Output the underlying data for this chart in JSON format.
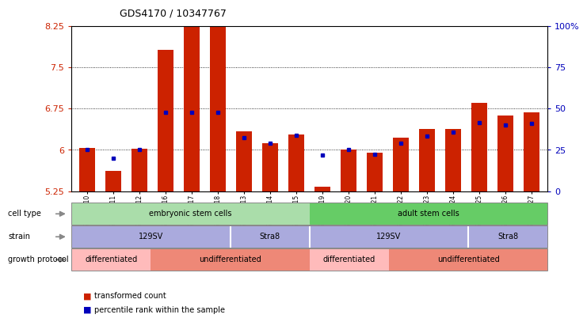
{
  "title": "GDS4170 / 10347767",
  "samples": [
    "GSM560810",
    "GSM560811",
    "GSM560812",
    "GSM560816",
    "GSM560817",
    "GSM560818",
    "GSM560813",
    "GSM560814",
    "GSM560815",
    "GSM560819",
    "GSM560820",
    "GSM560821",
    "GSM560822",
    "GSM560823",
    "GSM560824",
    "GSM560825",
    "GSM560826",
    "GSM560827"
  ],
  "red_values": [
    6.03,
    5.62,
    6.02,
    7.82,
    8.62,
    8.55,
    6.33,
    6.12,
    6.28,
    5.33,
    6.01,
    5.95,
    6.22,
    6.38,
    6.38,
    6.85,
    6.63,
    6.68
  ],
  "blue_values": [
    6.01,
    5.85,
    6.01,
    6.68,
    6.68,
    6.68,
    6.22,
    6.12,
    6.27,
    5.9,
    6.01,
    5.92,
    6.12,
    6.25,
    6.32,
    6.5,
    6.45,
    6.48
  ],
  "ymin": 5.25,
  "ymax": 8.25,
  "yticks": [
    5.25,
    6.0,
    6.75,
    7.5,
    8.25
  ],
  "ytick_labels": [
    "5.25",
    "6",
    "6.75",
    "7.5",
    "8.25"
  ],
  "bar_color": "#cc2200",
  "blue_color": "#0000bb",
  "cell_type_colors": [
    "#aaddaa",
    "#66cc66"
  ],
  "strain_color": "#aaaadd",
  "diff_light": "#ffbbbb",
  "diff_dark": "#ee8877",
  "cell_type_data": [
    {
      "start": 0,
      "end": 8,
      "label": "embryonic stem cells",
      "color": "#aaddaa"
    },
    {
      "start": 9,
      "end": 17,
      "label": "adult stem cells",
      "color": "#66cc66"
    }
  ],
  "strain_data": [
    {
      "start": 0,
      "end": 5,
      "label": "129SV",
      "color": "#aaaadd"
    },
    {
      "start": 6,
      "end": 8,
      "label": "Stra8",
      "color": "#aaaadd"
    },
    {
      "start": 9,
      "end": 14,
      "label": "129SV",
      "color": "#aaaadd"
    },
    {
      "start": 15,
      "end": 17,
      "label": "Stra8",
      "color": "#aaaadd"
    }
  ],
  "growth_data": [
    {
      "start": 0,
      "end": 2,
      "label": "differentiated",
      "color": "#ffbbbb"
    },
    {
      "start": 3,
      "end": 8,
      "label": "undifferentiated",
      "color": "#ee8877"
    },
    {
      "start": 9,
      "end": 11,
      "label": "differentiated",
      "color": "#ffbbbb"
    },
    {
      "start": 12,
      "end": 17,
      "label": "undifferentiated",
      "color": "#ee8877"
    }
  ],
  "row_labels": [
    "cell type",
    "strain",
    "growth protocol"
  ]
}
